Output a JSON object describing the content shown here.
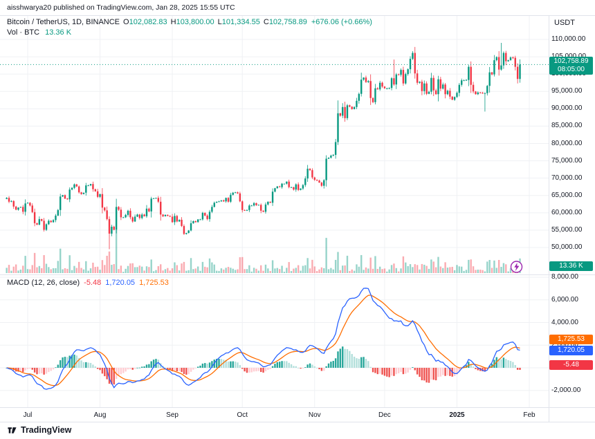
{
  "topbar": {
    "text": "aisshwarya20 published on TradingView.com, Jan 28, 2025 15:55 UTC"
  },
  "legend": {
    "symbol": "Bitcoin / TetherUS, 1D, BINANCE",
    "ohlc": [
      {
        "k": "O",
        "v": "102,082.83"
      },
      {
        "k": "H",
        "v": "103,800.00"
      },
      {
        "k": "L",
        "v": "101,334.55"
      },
      {
        "k": "C",
        "v": "102,758.89"
      }
    ],
    "change": "+676.06 (+0.66%)",
    "vol_label": "Vol · BTC",
    "vol_value": "13.36 K",
    "macd_title": "MACD (12, 26, close)",
    "macd_values": [
      {
        "v": "-5.48",
        "color": "#F23645"
      },
      {
        "v": "1,720.05",
        "color": "#2962FF"
      },
      {
        "v": "1,725.53",
        "color": "#FF6D00"
      }
    ]
  },
  "currency_label": "USDT",
  "axes": {
    "price_ticks": [
      {
        "value": 110000,
        "label": "110,000.00"
      },
      {
        "value": 105000,
        "label": "105,000.00"
      },
      {
        "value": 100000,
        "label": "100,000.00"
      },
      {
        "value": 95000,
        "label": "95,000.00"
      },
      {
        "value": 90000,
        "label": "90,000.00"
      },
      {
        "value": 85000,
        "label": "85,000.00"
      },
      {
        "value": 80000,
        "label": "80,000.00"
      },
      {
        "value": 75000,
        "label": "75,000.00"
      },
      {
        "value": 70000,
        "label": "70,000.00"
      },
      {
        "value": 65000,
        "label": "65,000.00"
      },
      {
        "value": 60000,
        "label": "60,000.00"
      },
      {
        "value": 55000,
        "label": "55,000.00"
      },
      {
        "value": 50000,
        "label": "50,000.00"
      }
    ],
    "macd_ticks": [
      {
        "value": 8000,
        "label": "8,000.00"
      },
      {
        "value": 6000,
        "label": "6,000.00"
      },
      {
        "value": 4000,
        "label": "4,000.00"
      },
      {
        "value": 2000,
        "label": "2,000.00"
      },
      {
        "value": -2000,
        "label": "-2,000.00"
      }
    ],
    "time_ticks": [
      {
        "label": "Jul",
        "offset": 0
      },
      {
        "label": "Aug",
        "offset": 31
      },
      {
        "label": "Sep",
        "offset": 62
      },
      {
        "label": "Oct",
        "offset": 92
      },
      {
        "label": "Nov",
        "offset": 123
      },
      {
        "label": "Dec",
        "offset": 153
      },
      {
        "label": "2025",
        "offset": 184,
        "bold": true
      },
      {
        "label": "Feb",
        "offset": 215
      }
    ]
  },
  "badges": {
    "price": {
      "value": "102,758.89",
      "countdown": "08:05:00",
      "bg": "#089981"
    },
    "volume": {
      "value": "13.36 K",
      "bg": "#089981"
    },
    "macd_signal": {
      "value": "1,725.53",
      "bg": "#FF6D00"
    },
    "macd_line": {
      "value": "1,720.05",
      "bg": "#2962FF"
    },
    "macd_hist": {
      "value": "-5.48",
      "bg": "#F23645"
    }
  },
  "footer": {
    "brand": "TradingView"
  },
  "colors": {
    "up": "#089981",
    "down": "#F23645",
    "macd_line": "#2962FF",
    "signal_line": "#FF6D00",
    "hist_pos": "#26A69A",
    "hist_pos_weak": "#B2DFDB",
    "hist_neg": "#EF5350",
    "hist_neg_weak": "#FFCDD2",
    "vol_up": "rgba(8,153,129,0.42)",
    "vol_down": "rgba(242,54,69,0.42)",
    "grid": "#EFF1F4",
    "axis_border": "#E0E3EB",
    "marker": "#9C27B0",
    "accent": "#089981"
  },
  "chart_data": {
    "type": "candlestick",
    "title": "Bitcoin / TetherUS, 1D, BINANCE",
    "panes": [
      "price+volume",
      "MACD (12, 26, close)"
    ],
    "x_start": "Jun 22 2024",
    "x_end": "Jan 28 2025",
    "price_axis_range": [
      50000,
      110000
    ],
    "macd_axis_range": [
      -2000,
      8000
    ],
    "ohlc_last": {
      "open": 102082.83,
      "high": 103800.0,
      "low": 101334.55,
      "close": 102758.89,
      "change": 676.06,
      "change_pct": 0.66
    },
    "current_price": 102758.89,
    "volume_last_label": "13.36 K",
    "macd_last": {
      "histogram": -5.48,
      "macd": 1720.05,
      "signal": 1725.53
    },
    "macd_params": {
      "fast": 12,
      "slow": 26,
      "signal": 9
    },
    "closes": [
      64300,
      63200,
      63400,
      61800,
      60900,
      61500,
      61700,
      60300,
      62700,
      62900,
      62100,
      60200,
      57000,
      56600,
      58200,
      57700,
      55100,
      56700,
      57700,
      57300,
      57900,
      59200,
      60800,
      64700,
      65100,
      64100,
      63900,
      66700,
      67200,
      68200,
      67600,
      65900,
      65400,
      65800,
      67900,
      67900,
      68300,
      66800,
      66200,
      64600,
      65400,
      61500,
      60700,
      58200,
      54000,
      56000,
      55100,
      61700,
      60900,
      58700,
      58700,
      59400,
      60600,
      58700,
      57500,
      58900,
      59500,
      58500,
      59500,
      59000,
      61200,
      60400,
      64100,
      64200,
      64300,
      63200,
      59500,
      59000,
      59400,
      59100,
      58900,
      57300,
      59100,
      57500,
      58000,
      56200,
      53900,
      54200,
      54900,
      57000,
      57600,
      57300,
      58100,
      58100,
      60000,
      59200,
      58200,
      60300,
      61700,
      62900,
      63200,
      63300,
      63600,
      63300,
      64300,
      63200,
      65200,
      65800,
      65900,
      65600,
      63300,
      60800,
      60600,
      60800,
      62100,
      62100,
      62800,
      62200,
      62300,
      60600,
      60300,
      62400,
      63200,
      62900,
      66100,
      67100,
      67600,
      67400,
      68400,
      68400,
      69000,
      67400,
      67400,
      66700,
      68200,
      66600,
      67000,
      68000,
      69900,
      72700,
      72300,
      70200,
      69500,
      69300,
      68700,
      67800,
      69400,
      75600,
      75900,
      76500,
      76700,
      80400,
      88700,
      88000,
      90500,
      87300,
      91000,
      90600,
      89900,
      90500,
      92300,
      94300,
      98400,
      99000,
      97700,
      98000,
      93100,
      91900,
      95900,
      95600,
      97500,
      96400,
      95900,
      95900,
      96000,
      98800,
      97000,
      99900,
      99800,
      101200,
      97300,
      100000,
      101400,
      104400,
      106100,
      100200,
      97500,
      97800,
      95100,
      97300,
      94300,
      94900,
      98900,
      95300,
      94200,
      98500,
      95800,
      97000,
      94200,
      95200,
      93500,
      92600,
      93400,
      94600,
      96900,
      98200,
      98200,
      98300,
      102100,
      96900,
      95000,
      94200,
      94700,
      94600,
      94500,
      94500,
      96600,
      100500,
      99900,
      104000,
      104900,
      101300,
      102500,
      106100,
      103700,
      104000,
      104800,
      104700,
      102100,
      98600,
      102758
    ],
    "wick_overrides": {
      "44": {
        "low": 49500
      },
      "166": {
        "high": 104200
      },
      "205": {
        "low": 89200
      },
      "212": {
        "high": 109000
      },
      "219": {
        "low": 97300
      }
    }
  }
}
